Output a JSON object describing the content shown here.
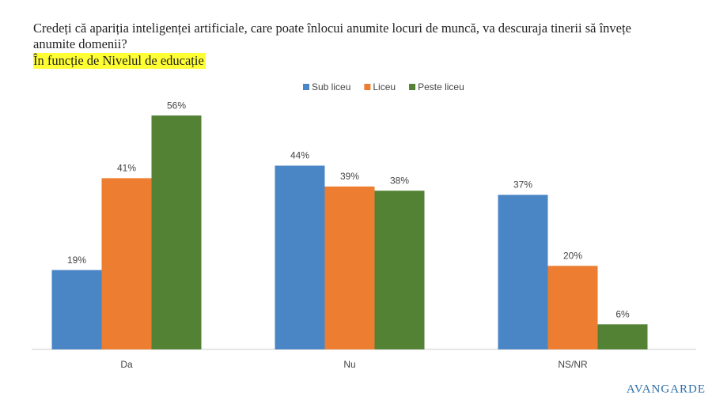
{
  "chart_data": {
    "type": "bar",
    "title": "Credeți că apariția inteligenței artificiale, care poate înlocui anumite locuri de muncă, va descuraja tinerii să învețe anumite domenii?",
    "subtitle": "În funcție de Nivelul de educație",
    "categories": [
      "Da",
      "Nu",
      "NS/NR"
    ],
    "series": [
      {
        "name": "Sub liceu",
        "color": "#4a86c5",
        "values": [
          19,
          44,
          37
        ],
        "value_labels": [
          "19%",
          "44%",
          "37%"
        ]
      },
      {
        "name": "Liceu",
        "color": "#ed7d31",
        "values": [
          41,
          39,
          20
        ],
        "value_labels": [
          "41%",
          "39%",
          "20%"
        ]
      },
      {
        "name": "Peste liceu",
        "color": "#548235",
        "values": [
          56,
          38,
          6
        ],
        "value_labels": [
          "56%",
          "38%",
          "6%"
        ]
      }
    ],
    "ylim": [
      0,
      60
    ],
    "logo": "AVANGARDE"
  }
}
